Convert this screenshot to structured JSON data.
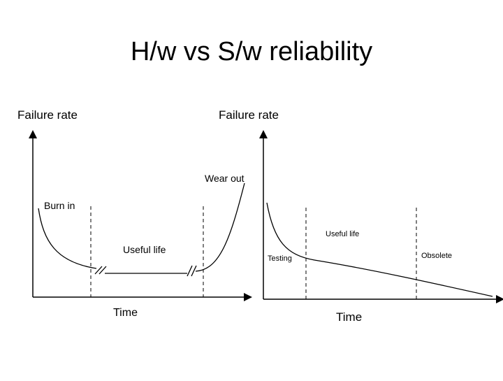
{
  "title": "H/w vs S/w reliability",
  "hardware": {
    "y_label": "Failure rate",
    "x_label": "Time",
    "regions": [
      "Burn in",
      "Useful life",
      "Wear out"
    ]
  },
  "software": {
    "y_label": "Failure rate",
    "x_label": "Time",
    "regions": [
      "Testing",
      "Useful life",
      "Obsolete"
    ]
  }
}
